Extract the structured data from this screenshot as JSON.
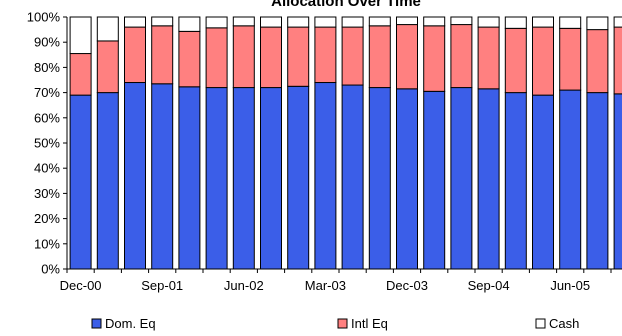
{
  "chart_data": {
    "type": "bar",
    "stacked": true,
    "title": "Allocation Over Time",
    "xlabel": "",
    "ylabel": "",
    "ylim": [
      0,
      100
    ],
    "y_tick_labels": [
      "0%",
      "10%",
      "20%",
      "30%",
      "40%",
      "50%",
      "60%",
      "70%",
      "80%",
      "90%",
      "100%"
    ],
    "x_tick_labels": [
      "Dec-00",
      "Sep-01",
      "Jun-02",
      "Mar-03",
      "Dec-03",
      "Sep-04",
      "Jun-05"
    ],
    "categories": [
      "Dec-00",
      "Mar-01",
      "Jun-01",
      "Sep-01",
      "Dec-01",
      "Mar-02",
      "Jun-02",
      "Sep-02",
      "Dec-02",
      "Mar-03",
      "Jun-03",
      "Sep-03",
      "Dec-03",
      "Mar-04",
      "Jun-04",
      "Sep-04",
      "Dec-04",
      "Mar-05",
      "Jun-05",
      "Sep-05",
      "Dec-05"
    ],
    "series": [
      {
        "name": "Dom. Eq",
        "color": "#3b5ee8",
        "values": [
          69,
          70,
          74,
          73.5,
          72.3,
          72,
          72,
          72,
          72.5,
          74,
          73,
          72,
          71.5,
          70.5,
          72,
          71.5,
          70,
          69,
          71,
          70,
          69.5
        ]
      },
      {
        "name": "Intl Eq",
        "color": "#ff8080",
        "values": [
          16.5,
          20.5,
          22,
          23,
          22,
          23.7,
          24.5,
          24,
          23.5,
          22,
          23,
          24.5,
          25.5,
          26,
          25,
          24.5,
          25.5,
          27,
          24.5,
          25,
          26.5
        ]
      },
      {
        "name": "Cash",
        "color": "#ffffff",
        "values": [
          14.5,
          9.5,
          4,
          3.5,
          5.7,
          4.3,
          3.5,
          4,
          4,
          4,
          4,
          3.5,
          3,
          3.5,
          3,
          4,
          4.5,
          4,
          4.5,
          5,
          4
        ]
      }
    ],
    "legend_position": "bottom",
    "grid": false
  }
}
